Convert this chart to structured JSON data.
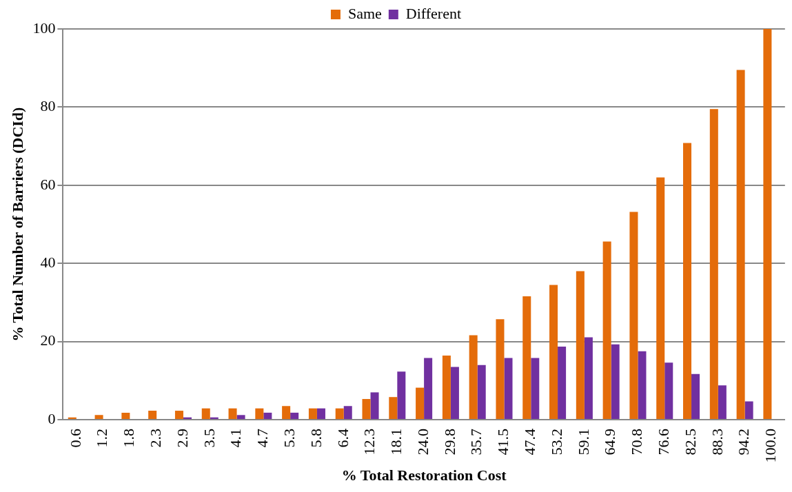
{
  "chart_data": {
    "type": "bar",
    "xlabel": "% Total Restoration Cost",
    "ylabel": "% Total Number of Barriers (DCId)",
    "categories": [
      "0.6",
      "1.2",
      "1.8",
      "2.3",
      "2.9",
      "3.5",
      "4.1",
      "4.7",
      "5.3",
      "5.8",
      "6.4",
      "12.3",
      "18.1",
      "24.0",
      "29.8",
      "35.7",
      "41.5",
      "47.4",
      "53.2",
      "59.1",
      "64.9",
      "70.8",
      "76.6",
      "82.5",
      "88.3",
      "94.2",
      "100.0"
    ],
    "series": [
      {
        "name": "Same",
        "color": "#e46c0a",
        "values": [
          0.6,
          1.2,
          1.8,
          2.3,
          2.3,
          2.9,
          2.9,
          2.9,
          3.5,
          2.9,
          2.9,
          5.3,
          5.8,
          8.2,
          16.4,
          21.6,
          25.7,
          31.6,
          34.5,
          38.0,
          45.6,
          53.2,
          62.0,
          70.8,
          79.5,
          89.5,
          100
        ]
      },
      {
        "name": "Different",
        "color": "#7030a0",
        "values": [
          0,
          0,
          0,
          0,
          0.6,
          0.6,
          1.2,
          1.8,
          1.8,
          2.9,
          3.5,
          7.0,
          12.3,
          15.8,
          13.5,
          14.0,
          15.8,
          15.8,
          18.7,
          21.1,
          19.3,
          17.5,
          14.6,
          11.7,
          8.8,
          4.7,
          0
        ]
      }
    ],
    "ylim": [
      0,
      100
    ],
    "yticks": [
      0,
      20,
      40,
      60,
      80,
      100
    ],
    "grid": "y",
    "legend": "top"
  }
}
